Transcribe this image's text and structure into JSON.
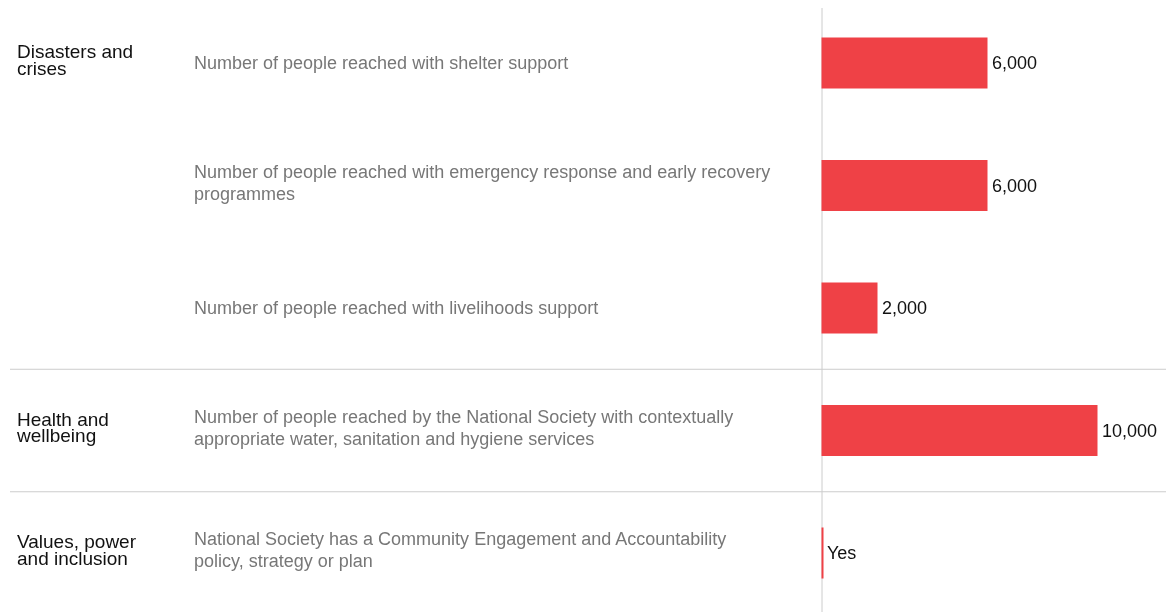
{
  "chart_data": {
    "type": "bar",
    "orientation": "horizontal",
    "categories": [
      "Number of people reached with shelter support",
      "Number of people reached with emergency response and early recovery programmes",
      "Number of people reached with livelihoods support",
      "Number of people reached by the National Society with contextually appropriate water, sanitation and hygiene services",
      "National Society has a Community Engagement and Accountability policy, strategy or plan"
    ],
    "values": [
      6000,
      6000,
      2000,
      10000,
      0
    ],
    "value_labels": [
      "6,000",
      "6,000",
      "2,000",
      "10,000",
      "Yes"
    ],
    "color": "#ef4146",
    "xlim": [
      0,
      10000
    ],
    "tick_labels": false,
    "annotations": [
      "Disasters and crises",
      "Health and wellbeing",
      "Values, power and inclusion"
    ]
  }
}
